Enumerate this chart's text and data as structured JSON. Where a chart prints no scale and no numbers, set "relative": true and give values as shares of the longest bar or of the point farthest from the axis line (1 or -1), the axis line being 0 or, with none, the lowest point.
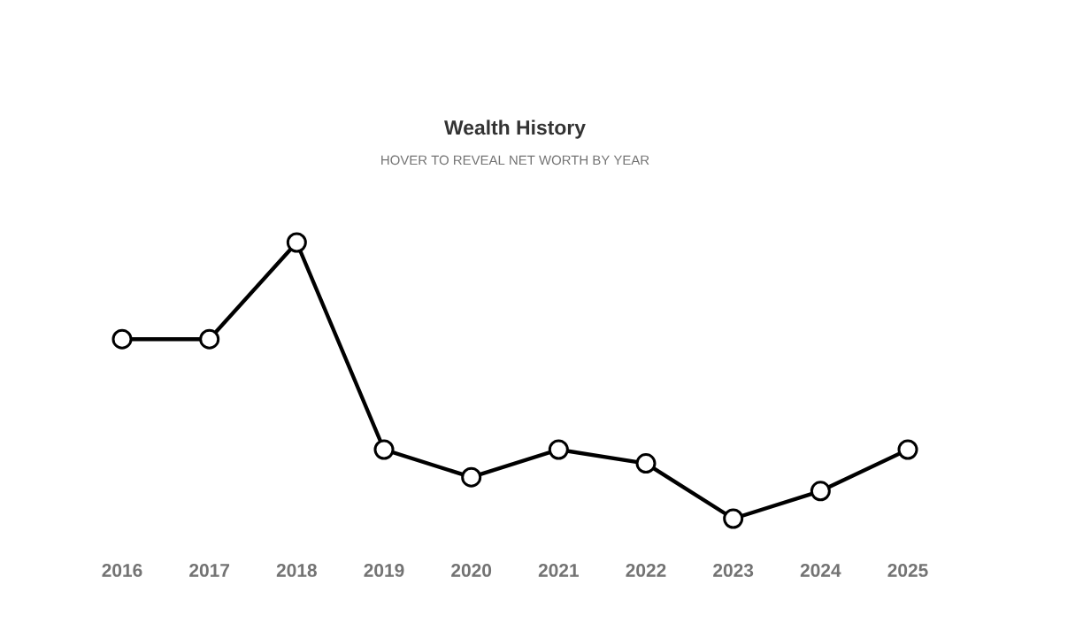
{
  "chart_data": {
    "type": "line",
    "title": "Wealth History",
    "subtitle": "HOVER TO REVEAL NET WORTH BY YEAR",
    "relative": true,
    "marker": "circle",
    "line_style": "solid",
    "categories": [
      "2016",
      "2017",
      "2018",
      "2019",
      "2020",
      "2021",
      "2022",
      "2023",
      "2024",
      "2025"
    ],
    "series": [
      {
        "color": "#000000",
        "values": [
          0.65,
          0.65,
          1,
          0.25,
          0.15,
          0.25,
          0.2,
          0,
          0.1,
          0.25
        ]
      }
    ]
  }
}
